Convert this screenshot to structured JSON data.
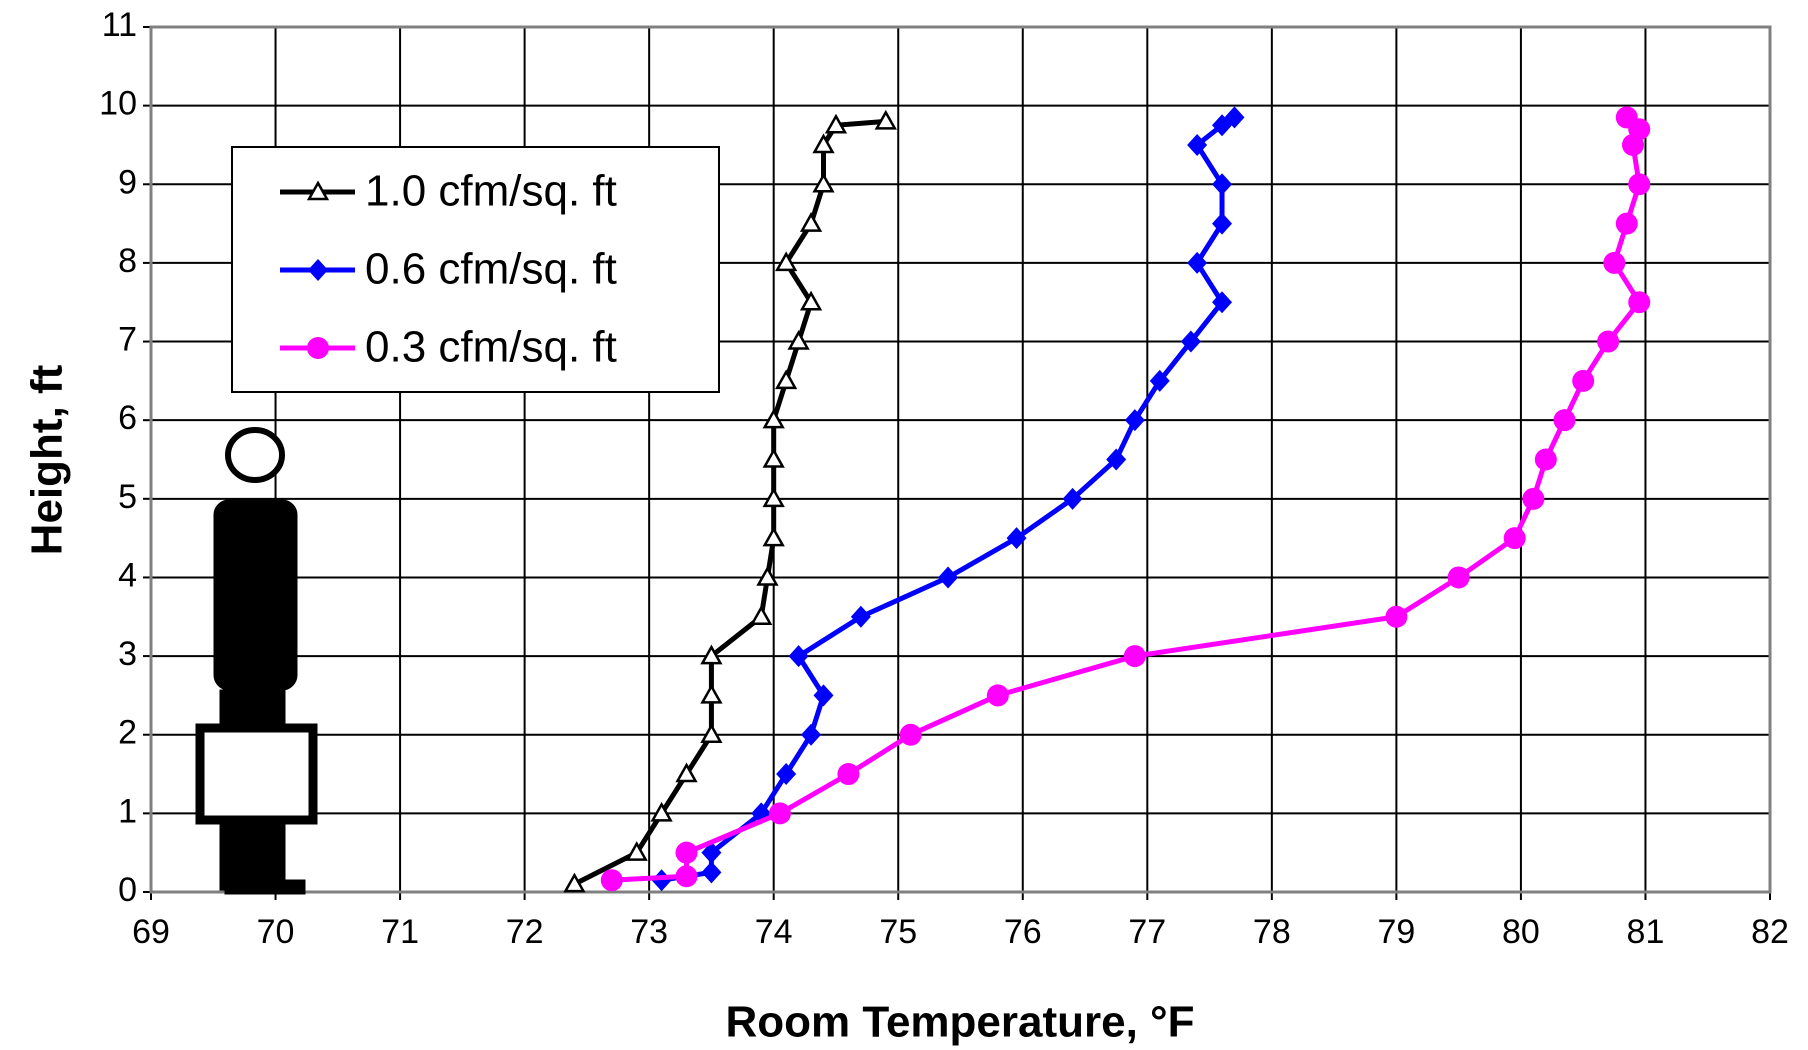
{
  "chart_data": {
    "type": "line",
    "xlabel": "Room Temperature, °F",
    "ylabel": "Height, ft",
    "xlim": [
      69,
      82
    ],
    "ylim": [
      0,
      11
    ],
    "xticks": [
      69,
      70,
      71,
      72,
      73,
      74,
      75,
      76,
      77,
      78,
      79,
      80,
      81,
      82
    ],
    "yticks": [
      0,
      1,
      2,
      3,
      4,
      5,
      6,
      7,
      8,
      9,
      10,
      11
    ],
    "grid": true,
    "legend": "upper left",
    "series": [
      {
        "name": "1.0 cfm/sq. ft",
        "color": "#000000",
        "marker": "triangle-open",
        "x": [
          72.4,
          72.9,
          73.1,
          73.3,
          73.5,
          73.5,
          73.5,
          73.9,
          73.95,
          74.0,
          74.0,
          74.0,
          74.0,
          74.1,
          74.2,
          74.3,
          74.1,
          74.3,
          74.4,
          74.4,
          74.5,
          74.9
        ],
        "values": [
          0.1,
          0.5,
          1.0,
          1.5,
          2.0,
          2.5,
          3.0,
          3.5,
          4.0,
          4.5,
          5.0,
          5.5,
          6.0,
          6.5,
          7.0,
          7.5,
          8.0,
          8.5,
          9.0,
          9.5,
          9.75,
          9.8
        ]
      },
      {
        "name": "0.6 cfm/sq. ft",
        "color": "#0000ff",
        "marker": "diamond",
        "x": [
          73.1,
          73.5,
          73.5,
          73.9,
          74.1,
          74.3,
          74.4,
          74.2,
          74.7,
          75.4,
          75.95,
          76.4,
          76.75,
          76.9,
          77.1,
          77.35,
          77.6,
          77.4,
          77.6,
          77.6,
          77.4,
          77.6,
          77.7
        ],
        "values": [
          0.15,
          0.25,
          0.5,
          1.0,
          1.5,
          2.0,
          2.5,
          3.0,
          3.5,
          4.0,
          4.5,
          5.0,
          5.5,
          6.0,
          6.5,
          7.0,
          7.5,
          8.0,
          8.5,
          9.0,
          9.5,
          9.75,
          9.85
        ]
      },
      {
        "name": "0.3 cfm/sq. ft",
        "color": "#ff00ff",
        "marker": "circle",
        "x": [
          72.7,
          73.3,
          73.3,
          74.05,
          74.6,
          75.1,
          75.8,
          76.9,
          79.0,
          79.5,
          79.95,
          80.1,
          80.2,
          80.35,
          80.5,
          80.7,
          80.95,
          80.75,
          80.85,
          80.95,
          80.9,
          80.95,
          80.85
        ],
        "values": [
          0.15,
          0.2,
          0.5,
          1.0,
          1.5,
          2.0,
          2.5,
          3.0,
          3.5,
          4.0,
          4.5,
          5.0,
          5.5,
          6.0,
          6.5,
          7.0,
          7.5,
          8.0,
          8.5,
          9.0,
          9.5,
          9.7,
          9.85
        ]
      }
    ]
  }
}
